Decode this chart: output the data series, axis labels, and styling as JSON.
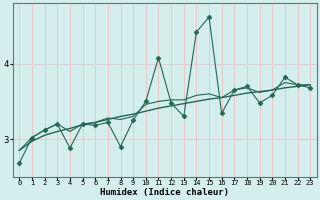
{
  "xlabel": "Humidex (Indice chaleur)",
  "ylabel": "",
  "background_color": "#d4eeed",
  "grid_color": "#e8c8cc",
  "line_color": "#226655",
  "marker_color": "#226655",
  "x": [
    0,
    1,
    2,
    3,
    4,
    5,
    6,
    7,
    8,
    9,
    10,
    11,
    12,
    13,
    14,
    15,
    16,
    17,
    18,
    19,
    20,
    21,
    22,
    23
  ],
  "y_scatter": [
    2.68,
    3.02,
    3.12,
    3.2,
    2.88,
    3.2,
    3.18,
    3.22,
    2.9,
    3.25,
    3.5,
    4.08,
    3.48,
    3.3,
    4.42,
    4.62,
    3.34,
    3.65,
    3.7,
    3.48,
    3.58,
    3.82,
    3.72,
    3.68
  ],
  "y_regression": [
    2.85,
    2.97,
    3.05,
    3.1,
    3.14,
    3.19,
    3.22,
    3.26,
    3.3,
    3.33,
    3.37,
    3.41,
    3.44,
    3.47,
    3.5,
    3.53,
    3.55,
    3.58,
    3.61,
    3.63,
    3.65,
    3.68,
    3.7,
    3.72
  ],
  "y_line2": [
    2.85,
    3.02,
    3.12,
    3.2,
    3.1,
    3.2,
    3.22,
    3.28,
    3.26,
    3.3,
    3.46,
    3.5,
    3.52,
    3.52,
    3.58,
    3.6,
    3.55,
    3.65,
    3.68,
    3.62,
    3.65,
    3.75,
    3.72,
    3.72
  ],
  "ylim": [
    2.5,
    4.8
  ],
  "yticks": [
    3,
    4
  ],
  "xlim": [
    -0.5,
    23.5
  ],
  "figsize": [
    3.2,
    2.0
  ],
  "dpi": 100
}
